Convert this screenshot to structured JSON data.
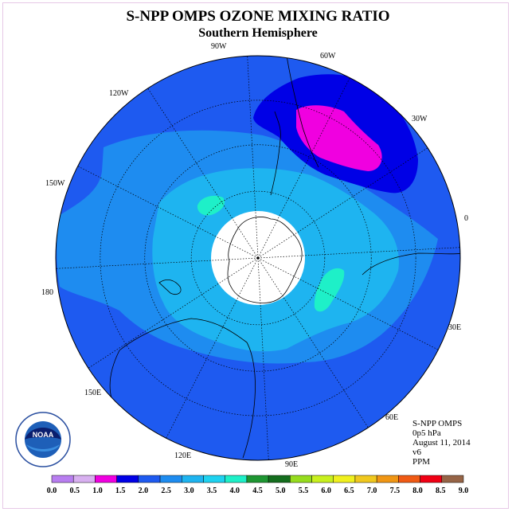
{
  "chart_data": {
    "type": "heatmap",
    "title": "S-NPP OMPS OZONE MIXING RATIO",
    "subtitle": "Southern Hemisphere",
    "projection": "south polar stereographic",
    "meridian_labels": [
      "0",
      "30E",
      "60E",
      "90E",
      "120E",
      "150E",
      "180",
      "150W",
      "120W",
      "90W",
      "60W",
      "30W"
    ],
    "info": {
      "instrument": "S-NPP OMPS",
      "level": "0p5 hPa",
      "date": "August 11, 2014",
      "version": "v6",
      "units": "PPM"
    },
    "colorbar": {
      "ticks": [
        "0.0",
        "0.5",
        "1.0",
        "1.5",
        "2.0",
        "2.5",
        "3.0",
        "3.5",
        "4.0",
        "4.5",
        "5.0",
        "5.5",
        "6.0",
        "6.5",
        "7.0",
        "7.5",
        "8.0",
        "8.5",
        "9.0"
      ],
      "colors": [
        "#b87ef0",
        "#d8b0f0",
        "#f000e0",
        "#0000e6",
        "#1e5af0",
        "#1e8cf0",
        "#1eb4f0",
        "#1ed2f0",
        "#1ef0c8",
        "#1e9632",
        "#146e1e",
        "#96dc1e",
        "#c8f01e",
        "#f0f01e",
        "#f0c81e",
        "#f09614",
        "#f05a14",
        "#f00014",
        "#966446"
      ]
    },
    "field_summary": {
      "background_ppm": "2.0-2.5",
      "inner_ring_ppm": "3.0-3.5",
      "outer_ring_ppm": "2.5-3.0",
      "low_region_ppm": "1.5-2.0",
      "minimum_ppm": "1.0-1.5",
      "local_maxima_ppm": "3.5-4.0",
      "no_data": "polar night region"
    }
  },
  "logo": {
    "text": "NOAA"
  }
}
